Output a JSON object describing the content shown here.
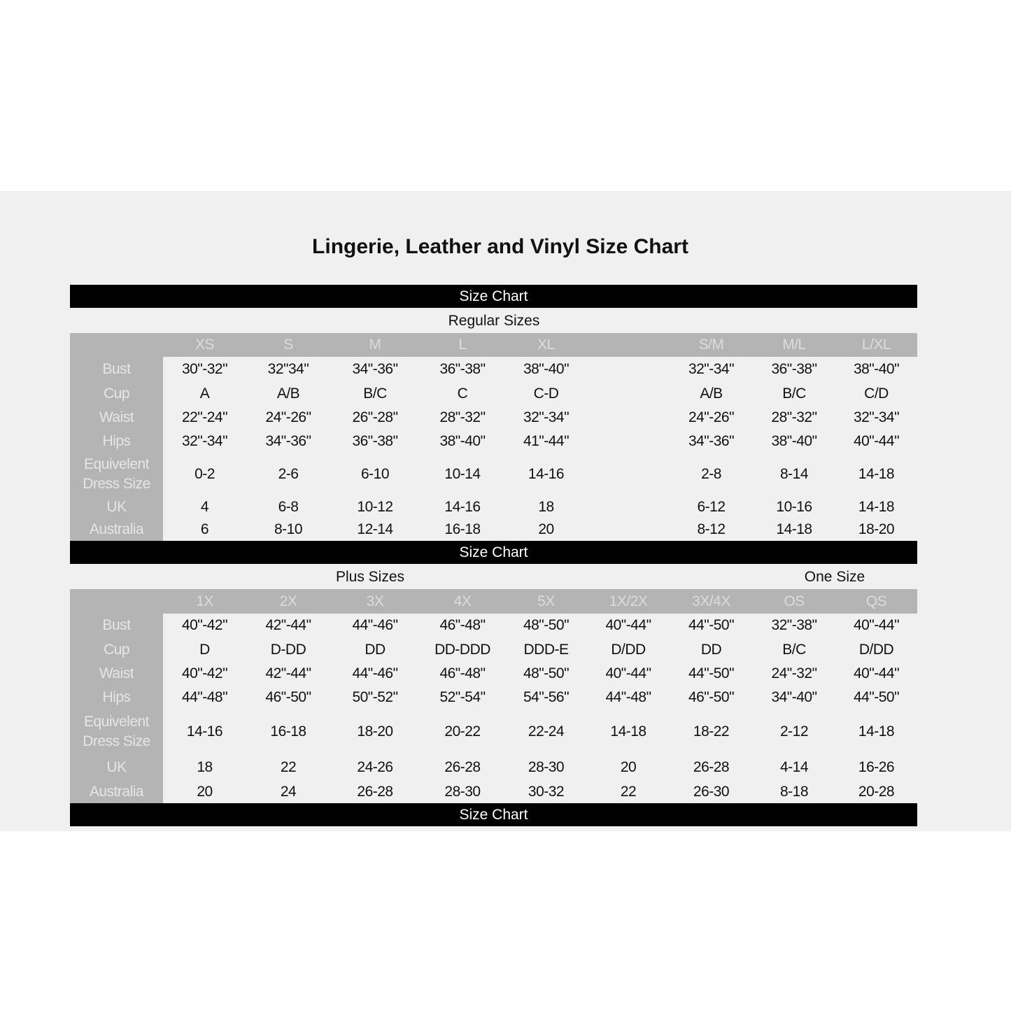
{
  "title": "Lingerie, Leather and Vinyl Size Chart",
  "bar_label": "Size Chart",
  "colors": {
    "label_gray": "#b4b4b4",
    "bar": "#000000",
    "panel": "#f0f0f0"
  },
  "regular": {
    "caption": "Regular Sizes",
    "headers": [
      "XS",
      "S",
      "M",
      "L",
      "XL",
      "",
      "S/M",
      "M/L",
      "L/XL"
    ],
    "rows": [
      {
        "label": "Bust",
        "values": [
          "30\"-32\"",
          "32\"34\"",
          "34\"-36\"",
          "36\"-38\"",
          "38\"-40\"",
          "",
          "32\"-34\"",
          "36\"-38\"",
          "38\"-40\""
        ]
      },
      {
        "label": "Cup",
        "values": [
          "A",
          "A/B",
          "B/C",
          "C",
          "C-D",
          "",
          "A/B",
          "B/C",
          "C/D"
        ]
      },
      {
        "label": "Waist",
        "values": [
          "22\"-24\"",
          "24\"-26\"",
          "26\"-28\"",
          "28\"-32\"",
          "32\"-34\"",
          "",
          "24\"-26\"",
          "28\"-32\"",
          "32\"-34\""
        ]
      },
      {
        "label": "Hips",
        "values": [
          "32\"-34\"",
          "34\"-36\"",
          "36\"-38\"",
          "38\"-40\"",
          "41\"-44\"",
          "",
          "34\"-36\"",
          "38\"-40\"",
          "40\"-44\""
        ]
      },
      {
        "label": "Equivelent Dress Size",
        "values": [
          "0-2",
          "2-6",
          "6-10",
          "10-14",
          "14-16",
          "",
          "2-8",
          "8-14",
          "14-18"
        ]
      },
      {
        "label": "UK",
        "values": [
          "4",
          "6-8",
          "10-12",
          "14-16",
          "18",
          "",
          "6-12",
          "10-16",
          "14-18"
        ]
      },
      {
        "label": "Australia",
        "values": [
          "6",
          "8-10",
          "12-14",
          "16-18",
          "20",
          "",
          "8-12",
          "14-18",
          "18-20"
        ]
      }
    ]
  },
  "plus": {
    "caption": "Plus Sizes",
    "one_size_caption": "One Size",
    "headers": [
      "1X",
      "2X",
      "3X",
      "4X",
      "5X",
      "1X/2X",
      "3X/4X",
      "OS",
      "QS"
    ],
    "rows": [
      {
        "label": "Bust",
        "values": [
          "40\"-42\"",
          "42\"-44\"",
          "44\"-46\"",
          "46\"-48\"",
          "48\"-50\"",
          "40\"-44\"",
          "44\"-50\"",
          "32\"-38\"",
          "40\"-44\""
        ]
      },
      {
        "label": "Cup",
        "values": [
          "D",
          "D-DD",
          "DD",
          "DD-DDD",
          "DDD-E",
          "D/DD",
          "DD",
          "B/C",
          "D/DD"
        ]
      },
      {
        "label": "Waist",
        "values": [
          "40\"-42\"",
          "42\"-44\"",
          "44\"-46\"",
          "46\"-48\"",
          "48\"-50\"",
          "40\"-44\"",
          "44\"-50\"",
          "24\"-32\"",
          "40\"-44\""
        ]
      },
      {
        "label": "Hips",
        "values": [
          "44\"-48\"",
          "46\"-50\"",
          "50\"-52\"",
          "52\"-54\"",
          "54\"-56\"",
          "44\"-48\"",
          "46\"-50\"",
          "34\"-40\"",
          "44\"-50\""
        ]
      },
      {
        "label": "Equivelent Dress Size",
        "values": [
          "14-16",
          "16-18",
          "18-20",
          "20-22",
          "22-24",
          "14-18",
          "18-22",
          "2-12",
          "14-18"
        ]
      },
      {
        "label": "UK",
        "values": [
          "18",
          "22",
          "24-26",
          "26-28",
          "28-30",
          "20",
          "26-28",
          "4-14",
          "16-26"
        ]
      },
      {
        "label": "Australia",
        "values": [
          "20",
          "24",
          "26-28",
          "28-30",
          "30-32",
          "22",
          "26-30",
          "8-18",
          "20-28"
        ]
      }
    ]
  }
}
